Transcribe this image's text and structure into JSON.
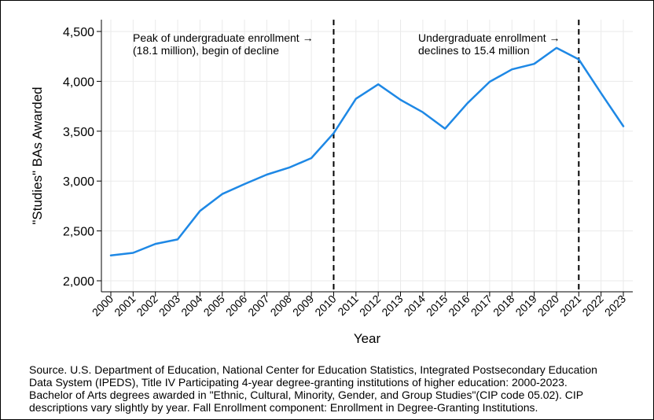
{
  "chart_data": {
    "type": "line",
    "title": "",
    "xlabel": "Year",
    "ylabel": "\"Studies\" BAs Awarded",
    "x": [
      2000,
      2001,
      2002,
      2003,
      2004,
      2005,
      2006,
      2007,
      2008,
      2009,
      2010,
      2011,
      2012,
      2013,
      2014,
      2015,
      2016,
      2017,
      2018,
      2019,
      2020,
      2021,
      2022,
      2023
    ],
    "series": [
      {
        "values": [
          2255,
          2280,
          2370,
          2415,
          2700,
          2870,
          2970,
          3065,
          3135,
          3230,
          3480,
          3825,
          3970,
          3815,
          3690,
          3525,
          3780,
          3995,
          4120,
          4175,
          4335,
          4220,
          3880,
          3550
        ],
        "color": "#1e88e5"
      }
    ],
    "ylim": [
      1950,
      4600
    ],
    "yticks": [
      2000,
      2500,
      3000,
      3500,
      4000,
      4500
    ],
    "ytick_labels": [
      "2,000",
      "2,500",
      "3,000",
      "3,500",
      "4,000",
      "4,500"
    ],
    "xtick_labels": [
      "2000",
      "2001",
      "2002",
      "2003",
      "2004",
      "2005",
      "2006",
      "2007",
      "2008",
      "2009",
      "2010",
      "2011",
      "2012",
      "2013",
      "2014",
      "2015",
      "2016",
      "2017",
      "2018",
      "2019",
      "2020",
      "2021",
      "2022",
      "2023"
    ],
    "grid": true,
    "vlines": [
      2010,
      2021
    ],
    "annotations": [
      {
        "lines": [
          "Peak of undergraduate enrollment →",
          "(18.1 million), begin of decline"
        ]
      },
      {
        "lines": [
          "Undergraduate enrollment →",
          "declines to 15.4 million"
        ]
      }
    ]
  },
  "source_note": [
    "Source. U.S. Department of Education, National Center for Education Statistics, Integrated Postsecondary Education",
    "Data System (IPEDS), Title IV Participating 4-year degree-granting institutions of higher education: 2000-2023.",
    "Bachelor of Arts degrees awarded in \"Ethnic, Cultural, Minority, Gender, and Group Studies\"(CIP code 05.02). CIP",
    "descriptions vary slightly by year. Fall Enrollment component: Enrollment in Degree-Granting Institutions."
  ]
}
